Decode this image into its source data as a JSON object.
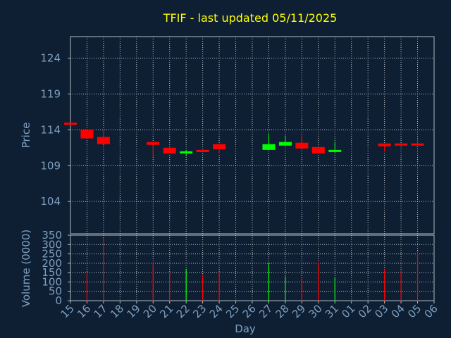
{
  "title": "TFIF - last updated 05/11/2025",
  "colors": {
    "background": "#0e1f33",
    "title": "#ffff00",
    "axis_text": "#7f9fbf",
    "frame": "#b0b8c0",
    "grid": "#ffffff",
    "up": "#00ff00",
    "down": "#ff0000"
  },
  "chart_data": [
    {
      "type": "candlestick",
      "ylabel": "Price",
      "ylim": [
        99.5,
        127
      ],
      "yticks": [
        104,
        109,
        114,
        119,
        124
      ],
      "grid": true,
      "x": [
        "15",
        "16",
        "17",
        "18",
        "19",
        "20",
        "21",
        "22",
        "23",
        "24",
        "25",
        "26",
        "27",
        "28",
        "29",
        "30",
        "31",
        "01",
        "02",
        "03",
        "04",
        "05",
        "06"
      ],
      "candles": [
        {
          "day": "15",
          "open": 115.0,
          "close": 114.8,
          "high": 115.0,
          "low": 114.8
        },
        {
          "day": "16",
          "open": 114.0,
          "close": 112.8,
          "high": 114.0,
          "low": 112.8
        },
        {
          "day": "17",
          "open": 113.0,
          "close": 112.0,
          "high": 114.0,
          "low": 112.0
        },
        {
          "day": "20",
          "open": 112.3,
          "close": 111.9,
          "high": 112.3,
          "low": 110.2
        },
        {
          "day": "21",
          "open": 111.5,
          "close": 110.7,
          "high": 111.6,
          "low": 110.7
        },
        {
          "day": "22",
          "open": 110.7,
          "close": 111.0,
          "high": 111.2,
          "low": 110.3
        },
        {
          "day": "23",
          "open": 111.2,
          "close": 110.9,
          "high": 111.2,
          "low": 110.9
        },
        {
          "day": "24",
          "open": 112.0,
          "close": 111.3,
          "high": 112.0,
          "low": 110.7
        },
        {
          "day": "27",
          "open": 111.2,
          "close": 112.0,
          "high": 113.5,
          "low": 111.2
        },
        {
          "day": "28",
          "open": 111.8,
          "close": 112.3,
          "high": 113.2,
          "low": 111.8
        },
        {
          "day": "29",
          "open": 112.2,
          "close": 111.4,
          "high": 113.2,
          "low": 111.4
        },
        {
          "day": "30",
          "open": 111.6,
          "close": 110.7,
          "high": 111.6,
          "low": 110.7
        },
        {
          "day": "31",
          "open": 111.0,
          "close": 111.2,
          "high": 112.3,
          "low": 110.8
        },
        {
          "day": "03",
          "open": 112.1,
          "close": 111.7,
          "high": 112.1,
          "low": 111.0
        },
        {
          "day": "04",
          "open": 112.1,
          "close": 111.9,
          "high": 112.1,
          "low": 111.9
        },
        {
          "day": "05",
          "open": 112.1,
          "close": 111.9,
          "high": 112.8,
          "low": 111.9
        }
      ]
    },
    {
      "type": "bar",
      "ylabel": "Volume (0000)",
      "xlabel": "Day",
      "ylim": [
        0,
        350
      ],
      "yticks": [
        0,
        50,
        100,
        150,
        200,
        250,
        300,
        350
      ],
      "categories": [
        "15",
        "16",
        "17",
        "18",
        "19",
        "20",
        "21",
        "22",
        "23",
        "24",
        "25",
        "26",
        "27",
        "28",
        "29",
        "30",
        "31",
        "01",
        "02",
        "03",
        "04",
        "05",
        "06"
      ],
      "bars": [
        {
          "day": "16",
          "value": 150,
          "dir": "down"
        },
        {
          "day": "17",
          "value": 335,
          "dir": "down"
        },
        {
          "day": "20",
          "value": 200,
          "dir": "down"
        },
        {
          "day": "21",
          "value": 150,
          "dir": "down"
        },
        {
          "day": "22",
          "value": 170,
          "dir": "up"
        },
        {
          "day": "23",
          "value": 140,
          "dir": "down"
        },
        {
          "day": "24",
          "value": 155,
          "dir": "down"
        },
        {
          "day": "27",
          "value": 200,
          "dir": "up"
        },
        {
          "day": "28",
          "value": 130,
          "dir": "up"
        },
        {
          "day": "29",
          "value": 120,
          "dir": "down"
        },
        {
          "day": "30",
          "value": 205,
          "dir": "down"
        },
        {
          "day": "31",
          "value": 125,
          "dir": "up"
        },
        {
          "day": "03",
          "value": 170,
          "dir": "down"
        },
        {
          "day": "04",
          "value": 160,
          "dir": "down"
        },
        {
          "day": "05",
          "value": 265,
          "dir": "down"
        }
      ]
    }
  ]
}
